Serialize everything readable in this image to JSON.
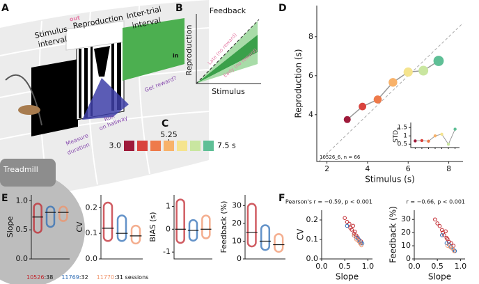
{
  "panel_labels": [
    "A",
    "B",
    "C",
    "D",
    "E",
    "F"
  ],
  "panel_a": {
    "stimulus": "Stimulus",
    "stimulus_2": "interval",
    "reproduction": "Reproduction",
    "iti": "Inter-trial",
    "iti_2": "interval",
    "out": "out",
    "in": "in",
    "reward": "Get reward?",
    "run": "Run",
    "run_2": "on hallway",
    "measure": "Measure",
    "measure_2": "duration",
    "treadmill": "Treadmill"
  },
  "panel_b": {
    "title": "Feedback",
    "xlabel": "Stimulus",
    "ylabel": "Reproduction",
    "late": "Late (no reward)",
    "early": "Early (no reward)"
  },
  "legend": [
    {
      "name": "10526",
      "suffix": ":38",
      "color": "#c0262d"
    },
    {
      "name": "11769",
      "suffix": ":32",
      "color": "#2f6db5"
    },
    {
      "name": "11770",
      "suffix": ":31 sessions",
      "color": "#f0936a"
    }
  ],
  "chart_data": [
    {
      "type": "colorbar",
      "values": [
        3.0,
        3.75,
        4.5,
        5.25,
        6.0,
        6.75,
        7.5
      ],
      "colors": [
        "#9e1a3a",
        "#d9433d",
        "#ee7a4a",
        "#f8b26a",
        "#f5e48e",
        "#c9e6a0",
        "#5fbf96"
      ],
      "ticks": [
        {
          "value": 3.0,
          "label": "3.0"
        },
        5.25,
        {
          "value": 7.5,
          "label": "7.5 s"
        }
      ]
    },
    {
      "type": "line",
      "xlabel": "Stimulus (s)",
      "ylabel": "Reproduction (s)",
      "annotation": "10526_6, n = 66",
      "x": [
        3.0,
        3.75,
        4.5,
        5.25,
        6.0,
        6.75,
        7.5
      ],
      "values": [
        3.75,
        4.42,
        4.78,
        5.66,
        6.19,
        6.26,
        6.76
      ],
      "colors": [
        "#9e1a3a",
        "#d9433d",
        "#ee7a4a",
        "#f8b26a",
        "#f5e48e",
        "#c9e6a0",
        "#5fbf96"
      ],
      "line_color": "#999999",
      "xlim": [
        1.5,
        8.7
      ],
      "ylim": [
        1.6,
        9.6
      ],
      "xticks": [
        2,
        4,
        6,
        8
      ],
      "yticks": [
        4,
        6,
        8
      ],
      "identity": true
    },
    {
      "type": "line",
      "ylabel": "STD",
      "ylabel_sub": "s",
      "x": [
        3.0,
        3.75,
        4.5,
        5.25,
        6.0,
        6.75,
        7.5
      ],
      "values": [
        0.7,
        0.72,
        0.68,
        1.0,
        1.1,
        0.5,
        1.4
      ],
      "colors": [
        "#9e1a3a",
        "#d9433d",
        "#ee7a4a",
        "#f8b26a",
        "#f5e48e",
        "#c9e6a0",
        "#5fbf96"
      ],
      "line_color": "#999999",
      "xlim": [
        2.5,
        8.0
      ],
      "ylim": [
        0.3,
        1.8
      ],
      "yticks": [
        0.5,
        1,
        1.5
      ]
    },
    {
      "type": "strip",
      "ylabel": "Slope",
      "ylim": [
        0,
        1.1
      ],
      "yticks": [
        {
          "value": 0,
          "label": "0.0"
        },
        0.5,
        {
          "value": 1,
          "label": "1.0"
        }
      ],
      "series": [
        {
          "color": "#c0262d",
          "value": 0.72,
          "range": [
            0.45,
            0.95
          ]
        },
        {
          "color": "#2f6db5",
          "value": 0.8,
          "range": [
            0.55,
            0.9
          ]
        },
        {
          "color": "#f0936a",
          "value": 0.8,
          "range": [
            0.65,
            0.9
          ]
        }
      ]
    },
    {
      "type": "strip",
      "ylabel": "CV",
      "ylim": [
        0,
        0.25
      ],
      "yticks": [
        {
          "value": 0,
          "label": "0.0"
        },
        0.1,
        0.2
      ],
      "series": [
        {
          "color": "#c0262d",
          "value": 0.12,
          "range": [
            0.07,
            0.22
          ]
        },
        {
          "color": "#2f6db5",
          "value": 0.1,
          "range": [
            0.07,
            0.17
          ]
        },
        {
          "color": "#f0936a",
          "value": 0.09,
          "range": [
            0.06,
            0.13
          ]
        }
      ]
    },
    {
      "type": "strip",
      "ylabel": "BIAS (s)",
      "ylim": [
        -1.3,
        1.5
      ],
      "yticks": [
        -1,
        0,
        1
      ],
      "series": [
        {
          "color": "#c0262d",
          "value": 0.0,
          "range": [
            -0.6,
            1.3
          ]
        },
        {
          "color": "#2f6db5",
          "value": -0.05,
          "range": [
            -0.5,
            0.4
          ]
        },
        {
          "color": "#f0936a",
          "value": 0.0,
          "range": [
            -0.4,
            0.6
          ]
        }
      ]
    },
    {
      "type": "strip",
      "ylabel": "Feedback (%)",
      "ylim": [
        0,
        36
      ],
      "yticks": [
        0,
        10,
        20,
        30
      ],
      "series": [
        {
          "color": "#c0262d",
          "value": 15,
          "range": [
            7,
            31
          ]
        },
        {
          "color": "#2f6db5",
          "value": 10,
          "range": [
            5,
            19
          ]
        },
        {
          "color": "#f0936a",
          "value": 8,
          "range": [
            4,
            14
          ]
        }
      ]
    },
    {
      "type": "scatter",
      "title": "Pearson's r = −0.59, p < 0.001",
      "xlabel": "Slope",
      "ylabel": "CV",
      "xlim": [
        0,
        1.1
      ],
      "ylim": [
        0,
        0.25
      ],
      "xticks": [
        {
          "value": 0,
          "label": "0.0"
        },
        0.5,
        {
          "value": 1,
          "label": "1.0"
        }
      ],
      "yticks": [
        {
          "value": 0,
          "label": "0.0"
        },
        0.1,
        0.2
      ],
      "series": [
        {
          "color": "#c0262d",
          "x": [
            0.5,
            0.55,
            0.6,
            0.62,
            0.65,
            0.68,
            0.7,
            0.72,
            0.75,
            0.78,
            0.8,
            0.85
          ],
          "y": [
            0.21,
            0.19,
            0.18,
            0.16,
            0.15,
            0.17,
            0.13,
            0.14,
            0.12,
            0.11,
            0.1,
            0.09
          ]
        },
        {
          "color": "#2f6db5",
          "x": [
            0.55,
            0.7,
            0.75,
            0.8,
            0.82,
            0.85,
            0.88
          ],
          "y": [
            0.17,
            0.12,
            0.11,
            0.1,
            0.09,
            0.08,
            0.08
          ]
        },
        {
          "color": "#f0936a",
          "x": [
            0.7,
            0.75,
            0.8,
            0.83,
            0.86
          ],
          "y": [
            0.12,
            0.1,
            0.09,
            0.08,
            0.07
          ]
        }
      ]
    },
    {
      "type": "scatter",
      "title": "r = −0.66, p < 0.001",
      "xlabel": "Slope",
      "ylabel": "Feedback (%)",
      "xlim": [
        0,
        1.1
      ],
      "ylim": [
        0,
        37
      ],
      "xticks": [
        {
          "value": 0,
          "label": "0.0"
        },
        0.5,
        {
          "value": 1,
          "label": "1.0"
        }
      ],
      "yticks": [
        0,
        10,
        20,
        30
      ],
      "series": [
        {
          "color": "#c0262d",
          "x": [
            0.45,
            0.5,
            0.55,
            0.6,
            0.62,
            0.65,
            0.68,
            0.7,
            0.72,
            0.75,
            0.8,
            0.85
          ],
          "y": [
            30,
            27,
            25,
            22,
            20,
            18,
            21,
            16,
            15,
            13,
            12,
            10
          ]
        },
        {
          "color": "#2f6db5",
          "x": [
            0.6,
            0.7,
            0.75,
            0.8,
            0.85,
            0.88
          ],
          "y": [
            18,
            12,
            11,
            9,
            7,
            6
          ]
        },
        {
          "color": "#f0936a",
          "x": [
            0.72,
            0.78,
            0.82,
            0.86
          ],
          "y": [
            10,
            9,
            8,
            6
          ]
        }
      ]
    }
  ]
}
